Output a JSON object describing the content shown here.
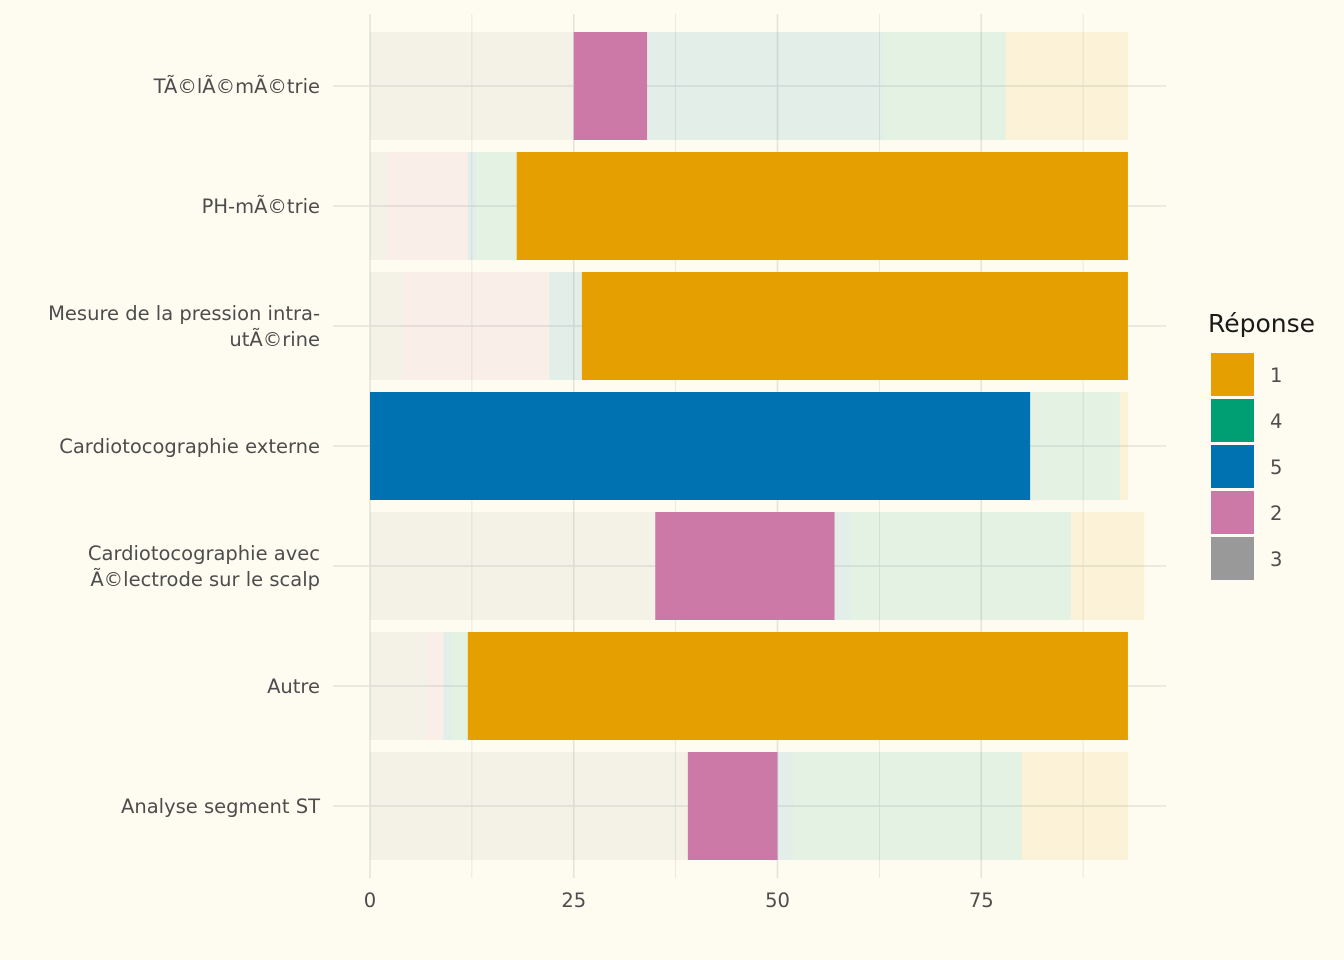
{
  "chart_data": {
    "type": "bar",
    "orientation": "horizontal",
    "stacked": true,
    "categories": [
      "TÃ©lÃ©mÃ©trie",
      "PH-mÃ©trie",
      "Mesure de la pression intra-utÃ©rine",
      "Cardiotocographie externe",
      "Cardiotocographie avec Ã©lectrode sur le scalp",
      "Autre",
      "Analyse segment ST"
    ],
    "category_lines": [
      [
        "TÃ©lÃ©mÃ©trie"
      ],
      [
        "PH-mÃ©trie"
      ],
      [
        "Mesure de la pression intra-",
        "utÃ©rine"
      ],
      [
        "Cardiotocographie externe"
      ],
      [
        "Cardiotocographie avec",
        "Ã©lectrode sur le scalp"
      ],
      [
        "Autre"
      ],
      [
        "Analyse segment ST"
      ]
    ],
    "stack_order": [
      "3",
      "2",
      "5",
      "4",
      "1"
    ],
    "series": [
      {
        "name": "3",
        "values": [
          25,
          2,
          4,
          0,
          35,
          7,
          39
        ]
      },
      {
        "name": "2",
        "values": [
          9,
          10,
          18,
          0,
          22,
          2,
          11
        ]
      },
      {
        "name": "5",
        "values": [
          29,
          1,
          4,
          81,
          2,
          1,
          2
        ]
      },
      {
        "name": "4",
        "values": [
          15,
          5,
          0,
          11,
          27,
          2,
          28
        ]
      },
      {
        "name": "1",
        "values": [
          15,
          75,
          67,
          1,
          9,
          81,
          13
        ]
      }
    ],
    "highlight": {
      "TÃ©lÃ©mÃ©trie": "2",
      "PH-mÃ©trie": "1",
      "Mesure de la pression intra-utÃ©rine": "1",
      "Cardiotocographie externe": "5",
      "Cardiotocographie avec Ã©lectrode sur le scalp": "2",
      "Autre": "1",
      "Analyse segment ST": "2"
    },
    "colors": {
      "1": "#E69F00",
      "4": "#009E73",
      "5": "#0072B2",
      "2": "#CC79A7",
      "3": "#999999"
    },
    "background": "#fefcf0",
    "grid_color": "#e4e4dc",
    "xlim": [
      0,
      97.5
    ],
    "xticks": [
      0,
      25,
      50,
      75
    ],
    "xlabel": "",
    "ylabel": "",
    "grid": true,
    "legend": {
      "title": "Réponse",
      "position": "right",
      "entries": [
        "1",
        "4",
        "5",
        "2",
        "3"
      ]
    }
  }
}
